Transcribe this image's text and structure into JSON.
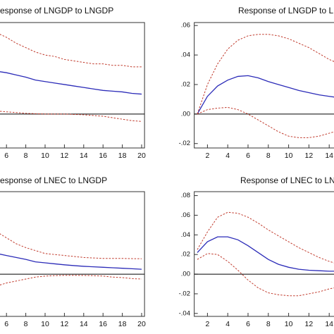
{
  "chart_data": [
    {
      "type": "line",
      "title": "esponse of LNGDP to LNGDP",
      "x": [
        5,
        6,
        7,
        8,
        9,
        10,
        11,
        12,
        13,
        14,
        15,
        16,
        17,
        18,
        19,
        20
      ],
      "series": [
        {
          "color": "#2b2bb8",
          "dash": "solid",
          "values": [
            0.029,
            0.028,
            0.0265,
            0.025,
            0.023,
            0.022,
            0.021,
            0.02,
            0.019,
            0.018,
            0.017,
            0.016,
            0.0155,
            0.015,
            0.014,
            0.0135
          ]
        },
        {
          "color": "#c0392b",
          "dash": "dashed",
          "values": [
            0.055,
            0.052,
            0.048,
            0.045,
            0.042,
            0.04,
            0.039,
            0.037,
            0.036,
            0.035,
            0.034,
            0.034,
            0.033,
            0.033,
            0.032,
            0.032
          ]
        },
        {
          "color": "#c0392b",
          "dash": "dashed",
          "values": [
            0.002,
            0.0015,
            0.001,
            0.0005,
            0.0002,
            0,
            0,
            0,
            -0.0003,
            -0.0005,
            -0.001,
            -0.0015,
            -0.0025,
            -0.0035,
            -0.0045,
            -0.005
          ]
        }
      ],
      "xlim": [
        0.7,
        20.3
      ],
      "xticks": [
        6,
        8,
        10,
        12,
        14,
        16,
        18,
        20
      ],
      "ylim": [
        -0.023,
        0.062
      ],
      "zero_line": true
    },
    {
      "type": "line",
      "title": "Response of LNGDP to LN",
      "x": [
        1,
        2,
        3,
        4,
        5,
        6,
        7,
        8,
        9,
        10,
        11,
        12,
        13,
        14,
        15
      ],
      "series": [
        {
          "color": "#2b2bb8",
          "dash": "solid",
          "values": [
            0,
            0.012,
            0.019,
            0.023,
            0.0255,
            0.026,
            0.0245,
            0.022,
            0.02,
            0.018,
            0.016,
            0.0145,
            0.013,
            0.012,
            0.011
          ]
        },
        {
          "color": "#c0392b",
          "dash": "dashed",
          "values": [
            0,
            0.02,
            0.034,
            0.044,
            0.05,
            0.053,
            0.054,
            0.054,
            0.053,
            0.051,
            0.048,
            0.045,
            0.041,
            0.037,
            0.034
          ]
        },
        {
          "color": "#c0392b",
          "dash": "dashed",
          "values": [
            0,
            0.003,
            0.004,
            0.0045,
            0.003,
            0,
            -0.004,
            -0.008,
            -0.012,
            -0.015,
            -0.016,
            -0.016,
            -0.015,
            -0.013,
            -0.011
          ]
        }
      ],
      "xlim": [
        0.7,
        20.3
      ],
      "xticks": [
        2,
        4,
        6,
        8,
        10,
        12,
        14
      ],
      "ylim": [
        -0.023,
        0.062
      ],
      "yticks": [
        {
          "value": 0.06,
          "label": ".06"
        },
        {
          "value": 0.04,
          "label": ".04"
        },
        {
          "value": 0.02,
          "label": ".02"
        },
        {
          "value": 0,
          "label": ".00"
        },
        {
          "value": -0.02,
          "label": "-.02"
        }
      ],
      "zero_line": true
    },
    {
      "type": "line",
      "title": "esponse of LNEC to LNGDP",
      "x": [
        5,
        6,
        7,
        8,
        9,
        10,
        11,
        12,
        13,
        14,
        15,
        16,
        17,
        18,
        19,
        20
      ],
      "series": [
        {
          "color": "#2b2bb8",
          "dash": "solid",
          "values": [
            0.021,
            0.019,
            0.017,
            0.015,
            0.0125,
            0.0115,
            0.0105,
            0.0095,
            0.0087,
            0.008,
            0.0075,
            0.007,
            0.0065,
            0.006,
            0.0055,
            0.005
          ]
        },
        {
          "color": "#c0392b",
          "dash": "dashed",
          "values": [
            0.043,
            0.037,
            0.031,
            0.027,
            0.024,
            0.021,
            0.02,
            0.019,
            0.018,
            0.017,
            0.0165,
            0.016,
            0.016,
            0.016,
            0.0158,
            0.0157
          ]
        },
        {
          "color": "#c0392b",
          "dash": "dashed",
          "values": [
            -0.012,
            -0.009,
            -0.007,
            -0.005,
            -0.003,
            -0.002,
            -0.0015,
            -0.0012,
            -0.0012,
            -0.0013,
            -0.0015,
            -0.002,
            -0.003,
            -0.0035,
            -0.0045,
            -0.005
          ]
        }
      ],
      "xlim": [
        0.7,
        20.3
      ],
      "xticks": [
        6,
        8,
        10,
        12,
        14,
        16,
        18,
        20
      ],
      "ylim": [
        -0.043,
        0.084
      ],
      "zero_line": true
    },
    {
      "type": "line",
      "title": "Response of LNEC to LNE",
      "x": [
        1,
        2,
        3,
        4,
        5,
        6,
        7,
        8,
        9,
        10,
        11,
        12,
        13,
        14,
        15
      ],
      "series": [
        {
          "color": "#2b2bb8",
          "dash": "solid",
          "values": [
            0.022,
            0.033,
            0.038,
            0.038,
            0.035,
            0.029,
            0.022,
            0.015,
            0.01,
            0.007,
            0.005,
            0.004,
            0.0035,
            0.003,
            0.003
          ]
        },
        {
          "color": "#c0392b",
          "dash": "dashed",
          "values": [
            0.025,
            0.043,
            0.058,
            0.063,
            0.062,
            0.058,
            0.052,
            0.045,
            0.039,
            0.033,
            0.027,
            0.022,
            0.017,
            0.013,
            0.01
          ]
        },
        {
          "color": "#c0392b",
          "dash": "dashed",
          "values": [
            0.015,
            0.021,
            0.02,
            0.013,
            0.004,
            -0.006,
            -0.014,
            -0.019,
            -0.021,
            -0.022,
            -0.022,
            -0.02,
            -0.018,
            -0.015,
            -0.013
          ]
        }
      ],
      "xlim": [
        0.7,
        20.3
      ],
      "xticks": [
        2,
        4,
        6,
        8,
        10,
        12,
        14
      ],
      "ylim": [
        -0.043,
        0.084
      ],
      "yticks": [
        {
          "value": 0.08,
          "label": ".08"
        },
        {
          "value": 0.06,
          "label": ".06"
        },
        {
          "value": 0.04,
          "label": ".04"
        },
        {
          "value": 0.02,
          "label": ".02"
        },
        {
          "value": 0,
          "label": ".00"
        },
        {
          "value": -0.02,
          "label": "-.02"
        },
        {
          "value": -0.04,
          "label": "-.04"
        }
      ],
      "zero_line": true
    }
  ]
}
